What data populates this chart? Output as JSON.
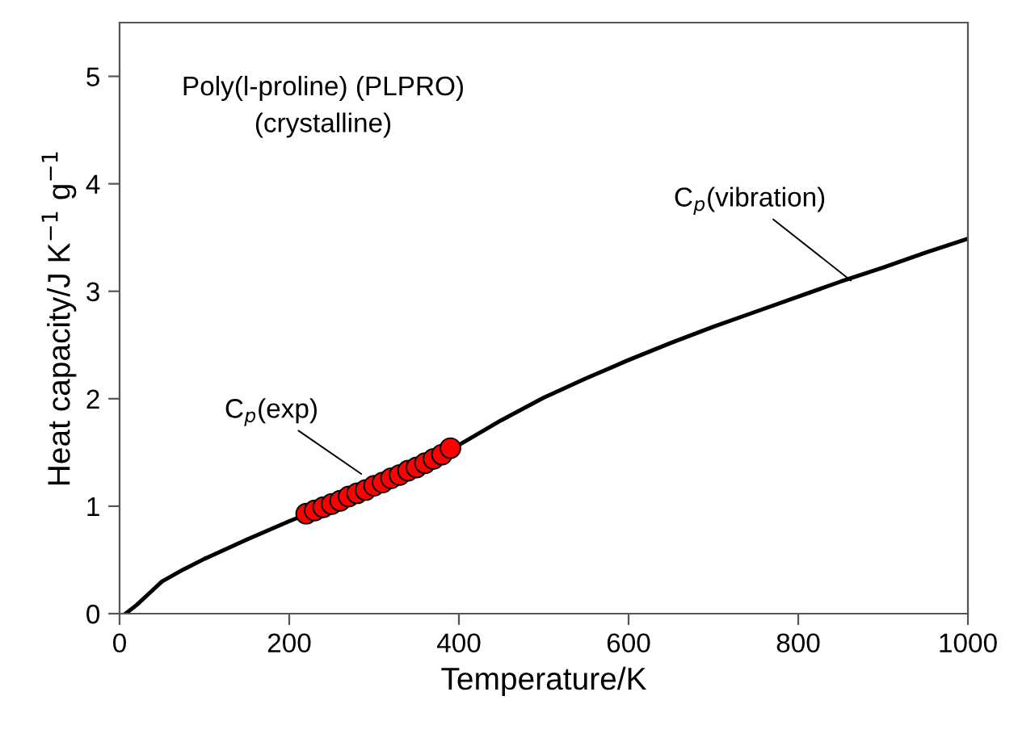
{
  "chart_data": {
    "type": "line",
    "xlabel": "Temperature/K",
    "ylabel": "Heat capacity/J K$^{−1}$ g$^{−1}$",
    "xlim": [
      0,
      1000
    ],
    "ylim": [
      0,
      5.5
    ],
    "xticks": [
      0,
      200,
      400,
      600,
      800,
      1000
    ],
    "yticks": [
      0,
      1,
      2,
      3,
      4,
      5
    ],
    "grid": false,
    "legend": false,
    "series": [
      {
        "color": "#000000",
        "x": [
          7,
          20,
          35,
          50,
          75,
          100,
          150,
          200,
          250,
          300,
          350,
          400,
          450,
          500,
          550,
          600,
          650,
          700,
          750,
          800,
          850,
          900,
          950,
          1000
        ],
        "values": [
          0,
          0.08,
          0.19,
          0.3,
          0.41,
          0.51,
          0.69,
          0.86,
          1.02,
          1.18,
          1.38,
          1.57,
          1.8,
          2.01,
          2.19,
          2.36,
          2.52,
          2.67,
          2.81,
          2.95,
          3.09,
          3.22,
          3.36,
          3.49
        ],
        "marker": "none",
        "line_style": "solid"
      },
      {
        "type": "scatter",
        "color": "#ff0000",
        "x": [
          220,
          230,
          240,
          250,
          260,
          270,
          280,
          290,
          300,
          310,
          320,
          330,
          340,
          350,
          360,
          370,
          380,
          390
        ],
        "values": [
          0.93,
          0.96,
          0.99,
          1.02,
          1.05,
          1.09,
          1.12,
          1.15,
          1.19,
          1.22,
          1.26,
          1.29,
          1.33,
          1.36,
          1.4,
          1.44,
          1.48,
          1.54
        ],
        "marker": "circle"
      }
    ],
    "annotations": [
      "Poly(l-proline) (PLPRO)\n(crystalline)",
      {
        "text": "C$_{p}$(exp)",
        "x": 285,
        "y": 1.3
      },
      {
        "text": "C$_{p}$(vibration)",
        "x": 862,
        "y": 3.1
      }
    ]
  }
}
